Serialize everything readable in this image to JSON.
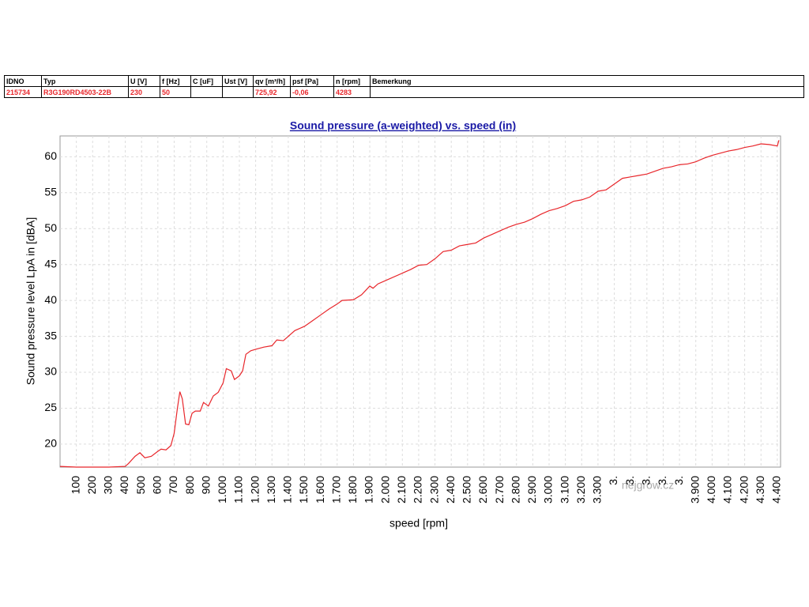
{
  "table": {
    "headers": [
      "IDNO",
      "Typ",
      "U [V]",
      "f [Hz]",
      "C [uF]",
      "Ust [V]",
      "qv [m³/h]",
      "psf [Pa]",
      "n [rpm]",
      "Bemerkung"
    ],
    "rows": [
      [
        "215734",
        "R3G190RD4503-22B",
        "230",
        "50",
        null,
        null,
        "725,92",
        "-0,06",
        "4283",
        null
      ]
    ]
  },
  "watermark": "nejgrow.cz",
  "chart_data": {
    "type": "line",
    "title": "Sound pressure (a-weighted) vs. speed (in)",
    "x_label": "speed [rpm]",
    "y_label": "Sound pressure level LpA in [dBA]",
    "xlim": [
      0,
      4420
    ],
    "ylim": [
      16.8,
      62.9
    ],
    "grid": true,
    "yticks": [
      20,
      25,
      30,
      35,
      40,
      45,
      50,
      55,
      60
    ],
    "xticks": [
      100,
      200,
      300,
      400,
      500,
      600,
      700,
      800,
      900,
      {
        "value": 1000,
        "label": "1.000"
      },
      {
        "value": 1100,
        "label": "1.100"
      },
      {
        "value": 1200,
        "label": "1.200"
      },
      {
        "value": 1300,
        "label": "1.300"
      },
      {
        "value": 1400,
        "label": "1.400"
      },
      {
        "value": 1500,
        "label": "1.500"
      },
      {
        "value": 1600,
        "label": "1.600"
      },
      {
        "value": 1700,
        "label": "1.700"
      },
      {
        "value": 1800,
        "label": "1.800"
      },
      {
        "value": 1900,
        "label": "1.900"
      },
      {
        "value": 2000,
        "label": "2.000"
      },
      {
        "value": 2100,
        "label": "2.100"
      },
      {
        "value": 2200,
        "label": "2.200"
      },
      {
        "value": 2300,
        "label": "2.300"
      },
      {
        "value": 2400,
        "label": "2.400"
      },
      {
        "value": 2500,
        "label": "2.500"
      },
      {
        "value": 2600,
        "label": "2.600"
      },
      {
        "value": 2700,
        "label": "2.700"
      },
      {
        "value": 2800,
        "label": "2.800"
      },
      {
        "value": 2900,
        "label": "2.900"
      },
      {
        "value": 3000,
        "label": "3.000"
      },
      {
        "value": 3100,
        "label": "3.100"
      },
      {
        "value": 3200,
        "label": "3.200"
      },
      {
        "value": 3300,
        "label": "3.300"
      },
      {
        "value": 3400,
        "label": "3."
      },
      {
        "value": 3500,
        "label": "3."
      },
      {
        "value": 3600,
        "label": "3."
      },
      {
        "value": 3700,
        "label": "3."
      },
      {
        "value": 3800,
        "label": "3."
      },
      {
        "value": 3900,
        "label": "3.900"
      },
      {
        "value": 4000,
        "label": "4.000"
      },
      {
        "value": 4100,
        "label": "4.100"
      },
      {
        "value": 4200,
        "label": "4.200"
      },
      {
        "value": 4300,
        "label": "4.300"
      },
      {
        "value": 4400,
        "label": "4.400"
      }
    ],
    "x": [
      0,
      100,
      200,
      300,
      400,
      420,
      460,
      490,
      520,
      560,
      600,
      620,
      650,
      680,
      700,
      720,
      735,
      750,
      770,
      790,
      810,
      830,
      860,
      880,
      910,
      940,
      970,
      1000,
      1020,
      1050,
      1070,
      1100,
      1120,
      1140,
      1170,
      1200,
      1250,
      1300,
      1330,
      1370,
      1400,
      1440,
      1500,
      1550,
      1600,
      1650,
      1700,
      1730,
      1800,
      1850,
      1900,
      1920,
      1950,
      2000,
      2100,
      2150,
      2200,
      2250,
      2300,
      2350,
      2400,
      2450,
      2500,
      2550,
      2600,
      2650,
      2700,
      2750,
      2800,
      2850,
      2900,
      2950,
      3000,
      3050,
      3100,
      3150,
      3200,
      3250,
      3300,
      3350,
      3400,
      3450,
      3500,
      3550,
      3600,
      3650,
      3700,
      3750,
      3800,
      3850,
      3900,
      3950,
      4000,
      4050,
      4100,
      4150,
      4200,
      4250,
      4300,
      4350,
      4400,
      4410
    ],
    "series": [
      {
        "color": "#e8262b",
        "values": [
          16.9,
          16.8,
          16.8,
          16.8,
          16.9,
          17.3,
          18.3,
          18.8,
          18.1,
          18.3,
          19.0,
          19.3,
          19.2,
          19.8,
          21.5,
          25.0,
          27.3,
          26.3,
          22.8,
          22.7,
          24.3,
          24.6,
          24.6,
          25.8,
          25.3,
          26.7,
          27.2,
          28.5,
          30.5,
          30.2,
          29.0,
          29.5,
          30.2,
          32.5,
          33.0,
          33.2,
          33.5,
          33.7,
          34.5,
          34.4,
          35.0,
          35.8,
          36.4,
          37.2,
          38.0,
          38.8,
          39.5,
          40.0,
          40.1,
          40.8,
          42.0,
          41.7,
          42.3,
          42.8,
          43.8,
          44.3,
          44.9,
          45.0,
          45.8,
          46.8,
          47.0,
          47.6,
          47.8,
          48.0,
          48.7,
          49.2,
          49.7,
          50.2,
          50.6,
          50.9,
          51.4,
          52.0,
          52.5,
          52.8,
          53.2,
          53.8,
          54.0,
          54.4,
          55.2,
          55.4,
          56.2,
          57.0,
          57.2,
          57.4,
          57.6,
          58.0,
          58.4,
          58.6,
          58.9,
          59.0,
          59.3,
          59.8,
          60.2,
          60.5,
          60.8,
          61.0,
          61.3,
          61.5,
          61.8,
          61.7,
          61.5,
          62.3
        ]
      }
    ]
  }
}
